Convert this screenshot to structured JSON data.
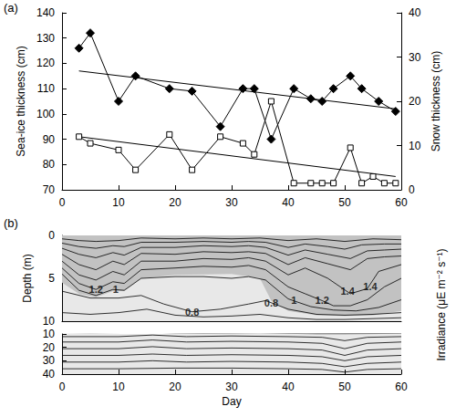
{
  "chart_data": [
    {
      "type": "line",
      "label": "(a)",
      "xlim": [
        0,
        60
      ],
      "xticks": [
        0,
        10,
        20,
        30,
        40,
        50,
        60
      ],
      "ylim": [
        70,
        140
      ],
      "yticks": [
        70,
        80,
        90,
        100,
        110,
        120,
        130,
        140
      ],
      "ylabel": "Sea-ice thickness (cm)",
      "y2lim": [
        0,
        40
      ],
      "y2ticks": [
        0,
        10,
        20,
        30,
        40
      ],
      "y2label": "Snow thickness (cm)",
      "grid": false,
      "series": [
        {
          "color": "#000000",
          "marker": "diamond",
          "x": [
            3,
            5,
            10,
            13,
            19,
            23,
            28,
            32,
            34,
            37,
            41,
            44,
            46,
            48,
            51,
            53,
            56,
            59
          ],
          "values": [
            126,
            132,
            105,
            115,
            110,
            109,
            95,
            110,
            110,
            90,
            110,
            106,
            105,
            110,
            115,
            110,
            105,
            101
          ]
        },
        {
          "color": "#000000",
          "marker": "square_open",
          "axis": "y2",
          "x": [
            3,
            5,
            10,
            13,
            19,
            23,
            28,
            32,
            34,
            37,
            41,
            44,
            46,
            48,
            51,
            53,
            55,
            57,
            59
          ],
          "values": [
            12,
            10.5,
            9,
            4.5,
            12.5,
            4.5,
            12,
            10.5,
            8,
            20,
            1.5,
            1.5,
            1.5,
            1.5,
            9.5,
            1.5,
            3,
            1.5,
            1.5
          ]
        },
        {
          "color": "#000000",
          "marker": "none",
          "x": [
            3,
            59
          ],
          "values": [
            117,
            102
          ]
        },
        {
          "color": "#000000",
          "marker": "none",
          "axis": "y2",
          "x": [
            3,
            59
          ],
          "values": [
            12,
            3
          ]
        }
      ]
    },
    {
      "type": "contour",
      "label": "(b)",
      "xlabel": "Day",
      "ylabel": "Depth (m)",
      "colorbar_label": "Irradiance (μE m⁻² s⁻¹)",
      "xlim": [
        0,
        60
      ],
      "xticks": [
        0,
        10,
        20,
        30,
        40,
        50,
        60
      ],
      "ylim": [
        0,
        10
      ],
      "yticks": [
        0,
        5,
        10
      ],
      "ylim_lower": [
        10,
        40
      ],
      "yticks_lower": [
        10,
        20,
        30,
        40
      ],
      "grid": false,
      "shaded": [
        [
          [
            0,
            0
          ],
          [
            60,
            0
          ],
          [
            60,
            8.8
          ],
          [
            55,
            9.3
          ],
          [
            50,
            9.4
          ],
          [
            45,
            9.3
          ],
          [
            40,
            8.8
          ],
          [
            37,
            7.6
          ],
          [
            35,
            5.0
          ],
          [
            30,
            4.5
          ],
          [
            20,
            4.6
          ],
          [
            14,
            5.0
          ],
          [
            11,
            6.5
          ],
          [
            9,
            6.5
          ],
          [
            6,
            7.2
          ],
          [
            3,
            6.8
          ],
          [
            0,
            5.5
          ]
        ]
      ],
      "contours": [
        [
          [
            0,
            0.4
          ],
          [
            3,
            0.6
          ],
          [
            6,
            0.7
          ],
          [
            10,
            0.6
          ],
          [
            14,
            0.3
          ],
          [
            20,
            0.4
          ],
          [
            25,
            0.3
          ],
          [
            30,
            0.4
          ],
          [
            35,
            0.3
          ],
          [
            40,
            0.6
          ],
          [
            45,
            0.4
          ],
          [
            50,
            0.7
          ],
          [
            55,
            0.4
          ],
          [
            60,
            0.5
          ]
        ],
        [
          [
            0,
            0.9
          ],
          [
            3,
            1.3
          ],
          [
            6,
            1.5
          ],
          [
            9,
            1.2
          ],
          [
            11,
            1.3
          ],
          [
            14,
            0.8
          ],
          [
            20,
            0.8
          ],
          [
            25,
            0.7
          ],
          [
            30,
            0.8
          ],
          [
            33,
            0.7
          ],
          [
            36,
            0.8
          ],
          [
            40,
            1.4
          ],
          [
            43,
            1.0
          ],
          [
            47,
            1.3
          ],
          [
            50,
            1.6
          ],
          [
            53,
            1.1
          ],
          [
            57,
            1.0
          ],
          [
            60,
            1.0
          ]
        ],
        [
          [
            0,
            1.5
          ],
          [
            3,
            2.2
          ],
          [
            6,
            2.6
          ],
          [
            9,
            2.0
          ],
          [
            11,
            2.3
          ],
          [
            14,
            1.4
          ],
          [
            20,
            1.4
          ],
          [
            25,
            1.2
          ],
          [
            30,
            1.3
          ],
          [
            33,
            1.2
          ],
          [
            36,
            1.4
          ],
          [
            40,
            2.3
          ],
          [
            43,
            1.7
          ],
          [
            47,
            2.2
          ],
          [
            51,
            2.7
          ],
          [
            54,
            1.8
          ],
          [
            57,
            1.7
          ],
          [
            60,
            1.6
          ]
        ],
        [
          [
            0,
            2.2
          ],
          [
            3,
            3.4
          ],
          [
            6,
            4.0
          ],
          [
            9,
            3.0
          ],
          [
            11,
            3.4
          ],
          [
            14,
            2.1
          ],
          [
            20,
            2.2
          ],
          [
            25,
            1.9
          ],
          [
            30,
            2.0
          ],
          [
            33,
            1.9
          ],
          [
            36,
            2.1
          ],
          [
            40,
            3.4
          ],
          [
            43,
            2.6
          ],
          [
            47,
            3.3
          ],
          [
            51,
            4.0
          ],
          [
            54,
            2.7
          ],
          [
            57,
            2.5
          ],
          [
            60,
            2.4
          ]
        ],
        [
          [
            0,
            3.0
          ],
          [
            3,
            4.6
          ],
          [
            6,
            5.2
          ],
          [
            9,
            4.2
          ],
          [
            11,
            4.6
          ],
          [
            14,
            3.0
          ],
          [
            20,
            3.0
          ],
          [
            25,
            2.7
          ],
          [
            30,
            2.8
          ],
          [
            33,
            2.6
          ],
          [
            36,
            3.0
          ],
          [
            40,
            4.6
          ],
          [
            43,
            3.8
          ],
          [
            47,
            5.0
          ],
          [
            51,
            6.8
          ],
          [
            54,
            6.2
          ],
          [
            56,
            4.2
          ],
          [
            60,
            3.4
          ]
        ],
        [
          [
            0,
            3.8
          ],
          [
            3,
            5.6
          ],
          [
            6,
            6.3
          ],
          [
            9,
            5.4
          ],
          [
            11,
            5.6
          ],
          [
            14,
            4.0
          ],
          [
            20,
            3.8
          ],
          [
            25,
            3.6
          ],
          [
            30,
            3.7
          ],
          [
            33,
            3.5
          ],
          [
            36,
            4.0
          ],
          [
            40,
            6.0
          ],
          [
            43,
            6.8
          ],
          [
            46,
            7.6
          ],
          [
            48,
            8.2
          ],
          [
            51,
            8.2
          ],
          [
            54,
            7.5
          ],
          [
            57,
            6.0
          ],
          [
            60,
            5.0
          ]
        ],
        [
          [
            0,
            4.5
          ],
          [
            3,
            6.4
          ],
          [
            6,
            7.0
          ],
          [
            9,
            6.3
          ],
          [
            11,
            6.4
          ],
          [
            14,
            5.0
          ],
          [
            20,
            4.8
          ],
          [
            25,
            4.8
          ],
          [
            30,
            5.0
          ],
          [
            33,
            4.8
          ],
          [
            36,
            5.2
          ],
          [
            40,
            7.4
          ],
          [
            44,
            8.3
          ],
          [
            48,
            8.7
          ],
          [
            52,
            8.8
          ],
          [
            56,
            8.4
          ],
          [
            60,
            7.5
          ]
        ],
        [
          [
            0,
            6.5
          ],
          [
            5,
            7.3
          ],
          [
            10,
            7.3
          ],
          [
            14,
            7.0
          ],
          [
            18,
            8.0
          ],
          [
            23,
            8.9
          ],
          [
            28,
            8.6
          ],
          [
            33,
            8.0
          ],
          [
            36,
            7.6
          ],
          [
            40,
            8.6
          ],
          [
            45,
            9.2
          ],
          [
            50,
            9.3
          ],
          [
            55,
            9.2
          ],
          [
            60,
            9.0
          ]
        ],
        [
          [
            0,
            9.0
          ],
          [
            5,
            9.2
          ],
          [
            10,
            9.0
          ],
          [
            15,
            8.6
          ],
          [
            20,
            9.3
          ],
          [
            25,
            9.5
          ],
          [
            30,
            9.4
          ],
          [
            35,
            9.2
          ],
          [
            40,
            9.6
          ],
          [
            45,
            9.8
          ],
          [
            50,
            9.8
          ],
          [
            55,
            9.7
          ],
          [
            60,
            9.6
          ]
        ],
        [
          [
            0,
            12
          ],
          [
            10,
            12
          ],
          [
            16,
            10.8
          ],
          [
            22,
            12
          ],
          [
            30,
            11.5
          ],
          [
            40,
            12
          ],
          [
            46,
            12.5
          ],
          [
            50,
            15
          ],
          [
            54,
            12.5
          ],
          [
            60,
            12
          ]
        ],
        [
          [
            0,
            16
          ],
          [
            10,
            16
          ],
          [
            16,
            14.5
          ],
          [
            22,
            16
          ],
          [
            30,
            15.5
          ],
          [
            40,
            16
          ],
          [
            46,
            17
          ],
          [
            50,
            21
          ],
          [
            54,
            17
          ],
          [
            60,
            16
          ]
        ],
        [
          [
            0,
            21
          ],
          [
            10,
            21
          ],
          [
            16,
            19.5
          ],
          [
            22,
            21
          ],
          [
            30,
            20.5
          ],
          [
            40,
            21
          ],
          [
            46,
            22
          ],
          [
            50,
            26
          ],
          [
            54,
            22
          ],
          [
            60,
            21
          ]
        ],
        [
          [
            0,
            26
          ],
          [
            10,
            26
          ],
          [
            16,
            25
          ],
          [
            22,
            26
          ],
          [
            30,
            25.5
          ],
          [
            40,
            26
          ],
          [
            46,
            27
          ],
          [
            50,
            30
          ],
          [
            54,
            27
          ],
          [
            60,
            26
          ]
        ],
        [
          [
            0,
            31
          ],
          [
            10,
            31
          ],
          [
            16,
            30
          ],
          [
            22,
            31
          ],
          [
            30,
            30.5
          ],
          [
            40,
            31
          ],
          [
            46,
            32
          ],
          [
            50,
            34.5
          ],
          [
            54,
            32
          ],
          [
            60,
            31
          ]
        ],
        [
          [
            0,
            36
          ],
          [
            10,
            36
          ],
          [
            20,
            35.5
          ],
          [
            30,
            35.5
          ],
          [
            40,
            36
          ],
          [
            46,
            36.5
          ],
          [
            50,
            38.5
          ],
          [
            54,
            36.5
          ],
          [
            60,
            36
          ]
        ]
      ],
      "contour_labels": [
        {
          "value": 1.2,
          "x": 6,
          "y": 6.3
        },
        {
          "value": 1,
          "x": 9.5,
          "y": 6.3
        },
        {
          "value": 0.8,
          "x": 23,
          "y": 8.9
        },
        {
          "value": 0.8,
          "x": 37,
          "y": 7.9
        },
        {
          "value": 1,
          "x": 41,
          "y": 7.6
        },
        {
          "value": 1.2,
          "x": 46,
          "y": 7.6
        },
        {
          "value": 1.4,
          "x": 50.5,
          "y": 6.5
        },
        {
          "value": 1.4,
          "x": 54.5,
          "y": 6.0
        }
      ]
    }
  ]
}
